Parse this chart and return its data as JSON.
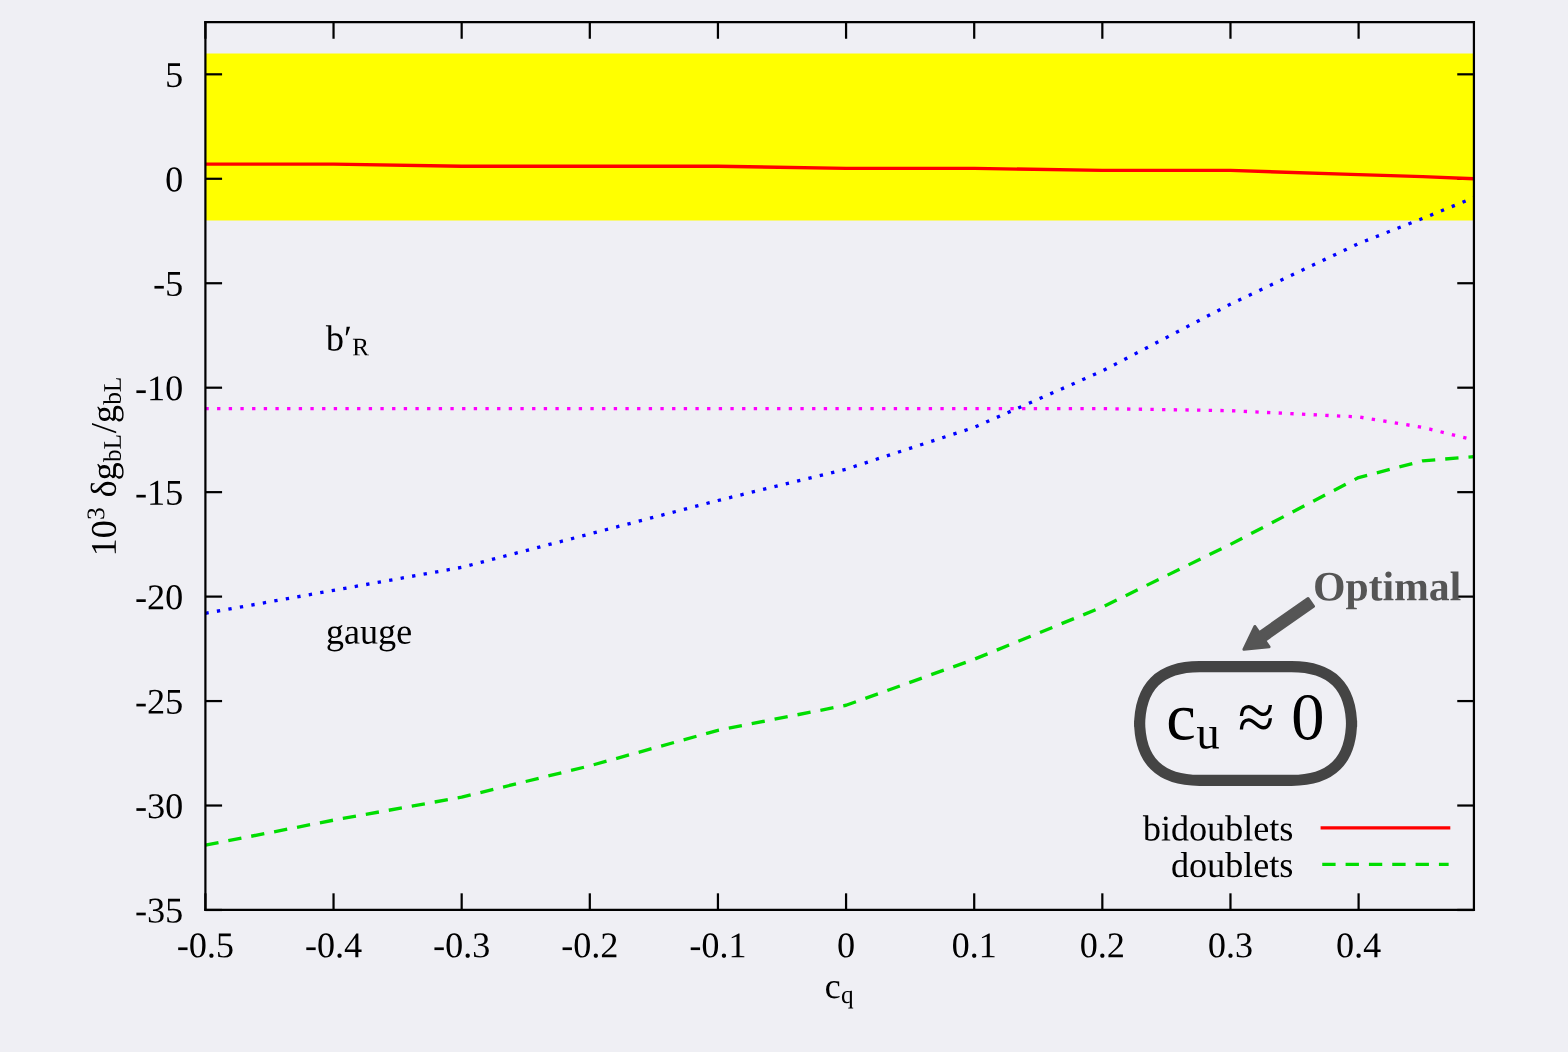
{
  "chart_data": {
    "type": "line",
    "xlabel": "c$_{q}$",
    "ylabel": "10$^{3}$ δg$_{bL}$/g$_{bL}$",
    "x": [
      -0.5,
      -0.4,
      -0.3,
      -0.2,
      -0.1,
      0,
      0.1,
      0.2,
      0.3,
      0.4,
      0.45,
      0.49
    ],
    "series": [
      {
        "name": "bidoublets",
        "color": "#ff0000",
        "line_style": "solid",
        "values": [
          0.7,
          0.7,
          0.6,
          0.6,
          0.6,
          0.5,
          0.5,
          0.4,
          0.4,
          0.2,
          0.1,
          0.0
        ]
      },
      {
        "name": "doublets",
        "color": "#00dd00",
        "line_style": "dashed",
        "values": [
          -31.9,
          -30.7,
          -29.6,
          -28.1,
          -26.4,
          -25.2,
          -23.0,
          -20.5,
          -17.5,
          -14.3,
          -13.5,
          -13.3
        ]
      },
      {
        "color": "#0000ff",
        "line_style": "dotted",
        "values": [
          -20.8,
          -19.7,
          -18.6,
          -17.0,
          -15.4,
          -13.9,
          -11.9,
          -9.2,
          -6.0,
          -3.1,
          -1.9,
          -0.9
        ]
      },
      {
        "color": "#ff00ff",
        "line_style": "dotted",
        "values": [
          -11.0,
          -11.0,
          -11.0,
          -11.0,
          -11.0,
          -11.0,
          -11.0,
          -11.0,
          -11.1,
          -11.4,
          -11.9,
          -12.5
        ]
      }
    ],
    "bands": [
      {
        "axis": "y",
        "from": -2,
        "to": 6,
        "color": "#ffff00"
      }
    ],
    "annotations": [
      "b′$_{R}$",
      "gauge",
      "Optimal",
      "c$_{u}$ ≈ 0"
    ],
    "xlim": [
      -0.5,
      0.49
    ],
    "ylim": [
      -35,
      7.5
    ],
    "xticks": [
      -0.5,
      -0.4,
      -0.3,
      -0.2,
      -0.1,
      0,
      0.1,
      0.2,
      0.3,
      0.4
    ],
    "yticks": [
      -35,
      -30,
      -25,
      -20,
      -15,
      -10,
      -5,
      0,
      5
    ],
    "legend": "bottom right",
    "grid": false
  }
}
